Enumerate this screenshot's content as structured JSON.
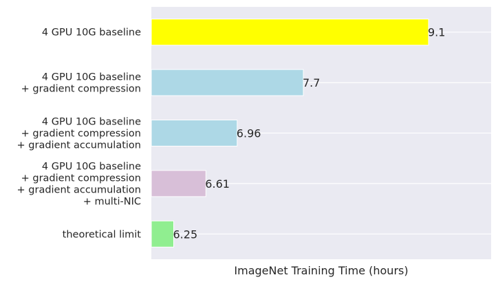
{
  "chart_data": {
    "type": "bar",
    "orientation": "horizontal",
    "categories": [
      [
        "4 GPU 10G baseline"
      ],
      [
        "4 GPU 10G baseline",
        "+ gradient compression"
      ],
      [
        "4 GPU 10G baseline",
        "+ gradient compression",
        "+ gradient accumulation"
      ],
      [
        "4 GPU 10G baseline",
        "+ gradient compression",
        "+ gradient accumulation",
        "+ multi-NIC"
      ],
      [
        "theoretical limit"
      ]
    ],
    "values": [
      9.1,
      7.7,
      6.96,
      6.61,
      6.25
    ],
    "value_labels": [
      "9.1",
      "7.7",
      "6.96",
      "6.61",
      "6.25"
    ],
    "colors": [
      "#ffff00",
      "#add8e6",
      "#add8e6",
      "#d8bfd8",
      "#90ee90"
    ],
    "xlabel": "ImageNet Training Time (hours)",
    "ylabel": "",
    "xlim": [
      6.0,
      9.8
    ],
    "x_ticks_shown": false,
    "grid": true,
    "background": "#eaeaf2"
  }
}
